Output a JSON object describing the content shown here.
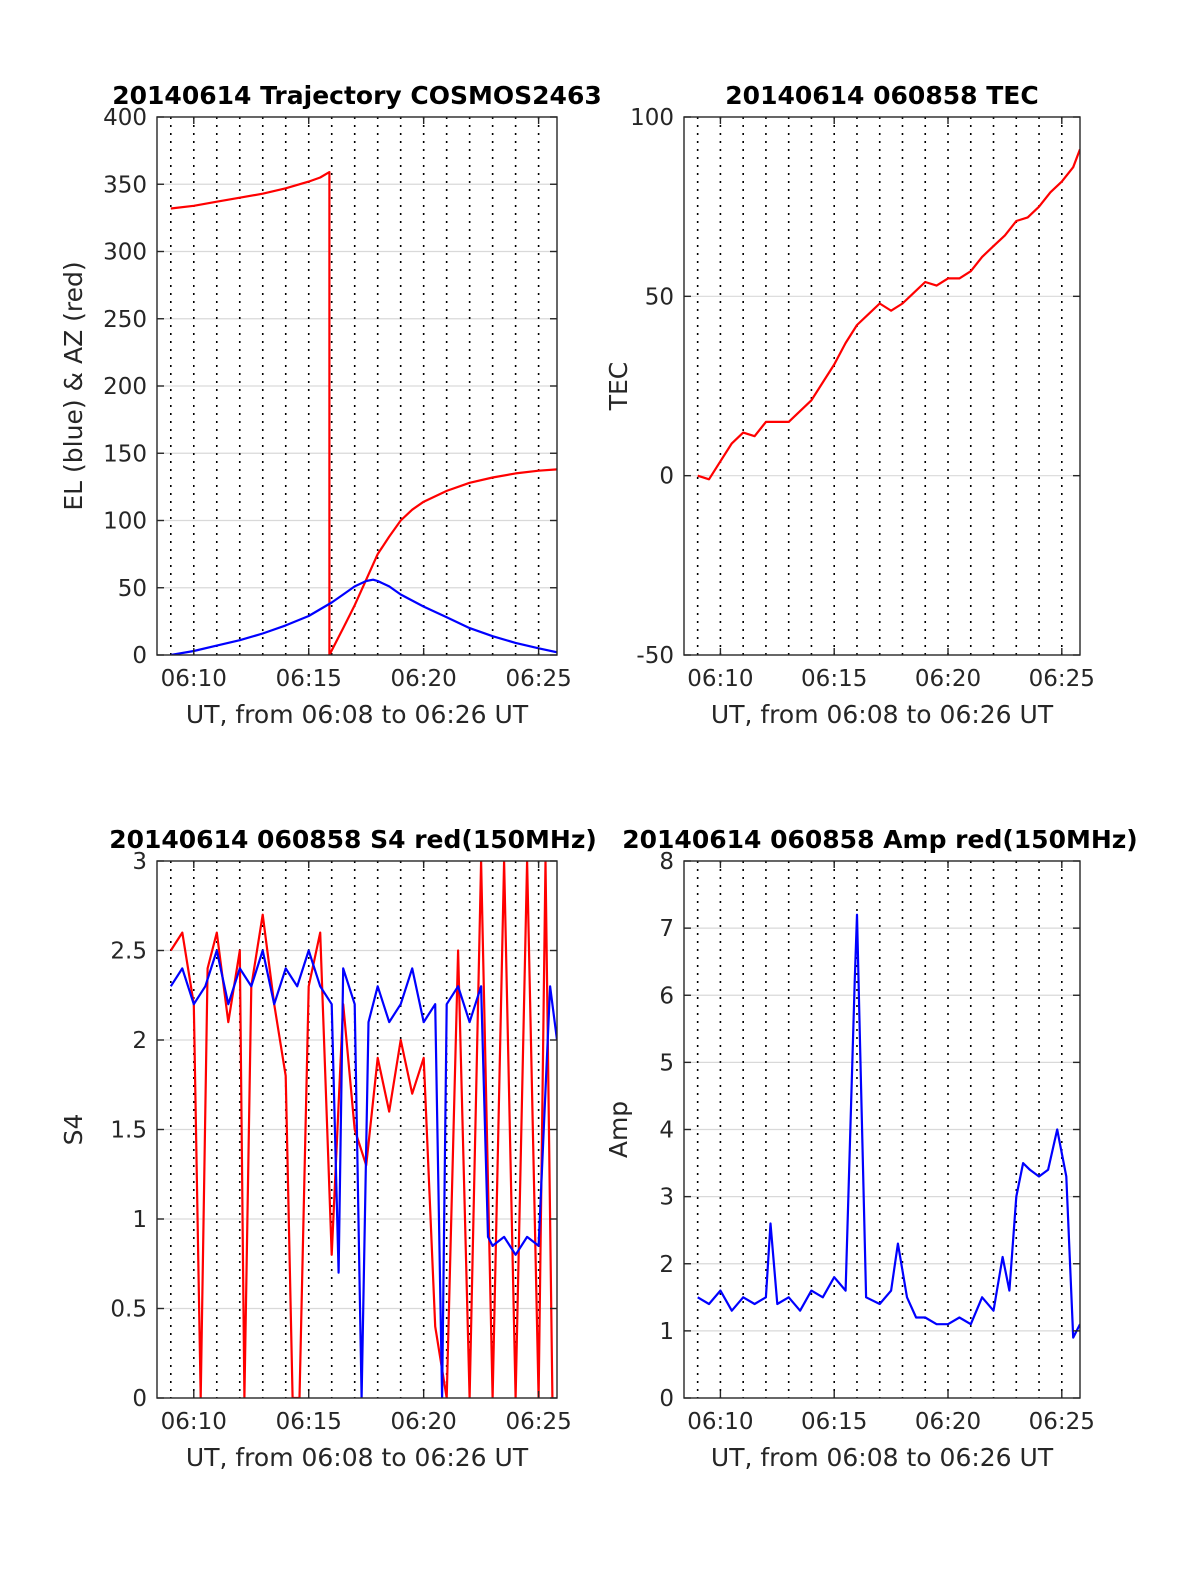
{
  "colors": {
    "red": "#ff0000",
    "blue": "#0000ff",
    "grid": "#d9d9d9",
    "axis": "#262626",
    "vgrid": "#000000"
  },
  "chart_data": [
    {
      "id": "trajectory",
      "type": "line",
      "title": "20140614 Trajectory COSMOS2463",
      "xlabel": "UT, from 06:08 to 06:26 UT",
      "ylabel": "EL (blue) & AZ (red)",
      "xlim": [
        8.4,
        25.8
      ],
      "ylim": [
        0,
        400
      ],
      "xticks": [
        10,
        15,
        20,
        25
      ],
      "xticklabels": [
        "06:10",
        "06:15",
        "06:20",
        "06:25"
      ],
      "yticks": [
        0,
        50,
        100,
        150,
        200,
        250,
        300,
        350,
        400
      ],
      "yticklabels": [
        "0",
        "50",
        "100",
        "150",
        "200",
        "250",
        "300",
        "350",
        "400"
      ],
      "vgrid_minutes": [
        9,
        10,
        11,
        12,
        13,
        14,
        15,
        16,
        17,
        18,
        19,
        20,
        21,
        22,
        23,
        24,
        25
      ],
      "grid": true,
      "series": [
        {
          "name": "AZ",
          "color": "#ff0000",
          "x": [
            9,
            10,
            11,
            12,
            13,
            14,
            15,
            15.5,
            15.9,
            15.9,
            16.5,
            17,
            17.5,
            18,
            18.5,
            19,
            19.5,
            20,
            21,
            22,
            23,
            24,
            25,
            25.8
          ],
          "y": [
            332,
            334,
            337,
            340,
            343,
            347,
            352,
            355,
            359,
            0,
            20,
            37,
            56,
            75,
            88,
            100,
            108,
            114,
            122,
            128,
            132,
            135,
            137,
            138
          ]
        },
        {
          "name": "EL",
          "color": "#0000ff",
          "x": [
            9,
            10,
            11,
            12,
            13,
            14,
            15,
            16,
            16.5,
            17,
            17.5,
            17.8,
            18,
            18.5,
            19,
            20,
            21,
            22,
            23,
            24,
            25,
            25.8
          ],
          "y": [
            0,
            3,
            7,
            11,
            16,
            22,
            29,
            39,
            45,
            51,
            55,
            56,
            55,
            51,
            45,
            36,
            28,
            20,
            14,
            9,
            5,
            2
          ]
        }
      ]
    },
    {
      "id": "tec",
      "type": "line",
      "title": "20140614 060858 TEC",
      "xlabel": "UT, from 06:08 to 06:26 UT",
      "ylabel": "TEC",
      "xlim": [
        8.4,
        25.8
      ],
      "ylim": [
        -50,
        100
      ],
      "xticks": [
        10,
        15,
        20,
        25
      ],
      "xticklabels": [
        "06:10",
        "06:15",
        "06:20",
        "06:25"
      ],
      "yticks": [
        -50,
        0,
        50,
        100
      ],
      "yticklabels": [
        "-50",
        "0",
        "50",
        "100"
      ],
      "vgrid_minutes": [
        9,
        10,
        11,
        12,
        13,
        14,
        15,
        16,
        17,
        18,
        19,
        20,
        21,
        22,
        23,
        24,
        25
      ],
      "grid": true,
      "series": [
        {
          "name": "TEC",
          "color": "#ff0000",
          "x": [
            9,
            9.5,
            10,
            10.5,
            11,
            11.5,
            12,
            12.5,
            13,
            13.5,
            14,
            14.5,
            15,
            15.5,
            16,
            16.5,
            17,
            17.5,
            18,
            18.5,
            19,
            19.5,
            20,
            20.5,
            21,
            21.5,
            22,
            22.5,
            23,
            23.5,
            24,
            24.5,
            25,
            25.5,
            25.8
          ],
          "y": [
            0,
            -1,
            4,
            9,
            12,
            11,
            15,
            15,
            15,
            18,
            21,
            26,
            31,
            37,
            42,
            45,
            48,
            46,
            48,
            51,
            54,
            53,
            55,
            55,
            57,
            61,
            64,
            67,
            71,
            72,
            75,
            79,
            82,
            86,
            91
          ]
        }
      ]
    },
    {
      "id": "s4",
      "type": "line",
      "title": "20140614 060858 S4 red(150MHz)",
      "xlabel": "UT, from 06:08 to 06:26 UT",
      "ylabel": "S4",
      "xlim": [
        8.4,
        25.8
      ],
      "ylim": [
        0,
        3
      ],
      "xticks": [
        10,
        15,
        20,
        25
      ],
      "xticklabels": [
        "06:10",
        "06:15",
        "06:20",
        "06:25"
      ],
      "yticks": [
        0,
        0.5,
        1,
        1.5,
        2,
        2.5,
        3
      ],
      "yticklabels": [
        "0",
        "0.5",
        "1",
        "1.5",
        "2",
        "2.5",
        "3"
      ],
      "vgrid_minutes": [
        9,
        10,
        11,
        12,
        13,
        14,
        15,
        16,
        17,
        18,
        19,
        20,
        21,
        22,
        23,
        24,
        25
      ],
      "grid": true,
      "series": [
        {
          "name": "red",
          "color": "#ff0000",
          "x": [
            9,
            9.5,
            10,
            10.3,
            10.6,
            11,
            11.5,
            12,
            12.2,
            12.5,
            13,
            13.5,
            14,
            14.3,
            14.6,
            15,
            15.5,
            16,
            16.5,
            17,
            17.5,
            18,
            18.5,
            19,
            19.5,
            20,
            20.5,
            21,
            21.5,
            22,
            22.5,
            23,
            23.5,
            24,
            24.5,
            25,
            25.3,
            25.6
          ],
          "y": [
            2.5,
            2.6,
            2.2,
            0,
            2.4,
            2.6,
            2.1,
            2.5,
            0,
            2.3,
            2.7,
            2.2,
            1.8,
            0,
            0,
            2.3,
            2.6,
            0.8,
            2.2,
            1.5,
            1.3,
            1.9,
            1.6,
            2.0,
            1.7,
            1.9,
            0.4,
            0,
            2.5,
            0,
            3,
            0,
            3,
            0,
            3,
            0,
            3,
            0
          ]
        },
        {
          "name": "blue",
          "color": "#0000ff",
          "x": [
            9,
            9.5,
            10,
            10.5,
            11,
            11.5,
            12,
            12.5,
            13,
            13.5,
            14,
            14.5,
            15,
            15.5,
            16,
            16.3,
            16.5,
            17,
            17.3,
            17.6,
            18,
            18.5,
            19,
            19.5,
            20,
            20.5,
            20.8,
            21,
            21.5,
            22,
            22.5,
            22.8,
            23,
            23.5,
            24,
            24.5,
            25,
            25.5,
            25.8
          ],
          "y": [
            2.3,
            2.4,
            2.2,
            2.3,
            2.5,
            2.2,
            2.4,
            2.3,
            2.5,
            2.2,
            2.4,
            2.3,
            2.5,
            2.3,
            2.2,
            0.7,
            2.4,
            2.2,
            0,
            2.1,
            2.3,
            2.1,
            2.2,
            2.4,
            2.1,
            2.2,
            0,
            2.2,
            2.3,
            2.1,
            2.3,
            0.9,
            0.85,
            0.9,
            0.8,
            0.9,
            0.85,
            2.3,
            2.0
          ]
        }
      ]
    },
    {
      "id": "amp",
      "type": "line",
      "title": "20140614 060858 Amp red(150MHz)",
      "xlabel": "UT, from 06:08 to 06:26 UT",
      "ylabel": "Amp",
      "xlim": [
        8.4,
        25.8
      ],
      "ylim": [
        0,
        8
      ],
      "xticks": [
        10,
        15,
        20,
        25
      ],
      "xticklabels": [
        "06:10",
        "06:15",
        "06:20",
        "06:25"
      ],
      "yticks": [
        0,
        1,
        2,
        3,
        4,
        5,
        6,
        7,
        8
      ],
      "yticklabels": [
        "0",
        "1",
        "2",
        "3",
        "4",
        "5",
        "6",
        "7",
        "8"
      ],
      "vgrid_minutes": [
        9,
        10,
        11,
        12,
        13,
        14,
        15,
        16,
        17,
        18,
        19,
        20,
        21,
        22,
        23,
        24,
        25
      ],
      "grid": true,
      "series": [
        {
          "name": "Amp",
          "color": "#0000ff",
          "x": [
            9,
            9.5,
            10,
            10.5,
            11,
            11.5,
            12,
            12.2,
            12.5,
            13,
            13.5,
            14,
            14.5,
            15,
            15.5,
            15.9,
            16.0,
            16.1,
            16.4,
            17,
            17.5,
            17.8,
            18.2,
            18.6,
            19,
            19.5,
            20,
            20.5,
            21,
            21.5,
            22,
            22.4,
            22.7,
            23.0,
            23.3,
            23.6,
            24,
            24.4,
            24.8,
            25.2,
            25.5,
            25.8
          ],
          "y": [
            1.5,
            1.4,
            1.6,
            1.3,
            1.5,
            1.4,
            1.5,
            2.6,
            1.4,
            1.5,
            1.3,
            1.6,
            1.5,
            1.8,
            1.6,
            6.2,
            7.2,
            5.8,
            1.5,
            1.4,
            1.6,
            2.3,
            1.5,
            1.2,
            1.2,
            1.1,
            1.1,
            1.2,
            1.1,
            1.5,
            1.3,
            2.1,
            1.6,
            3.0,
            3.5,
            3.4,
            3.3,
            3.4,
            4.0,
            3.3,
            0.9,
            1.1
          ]
        }
      ]
    }
  ]
}
